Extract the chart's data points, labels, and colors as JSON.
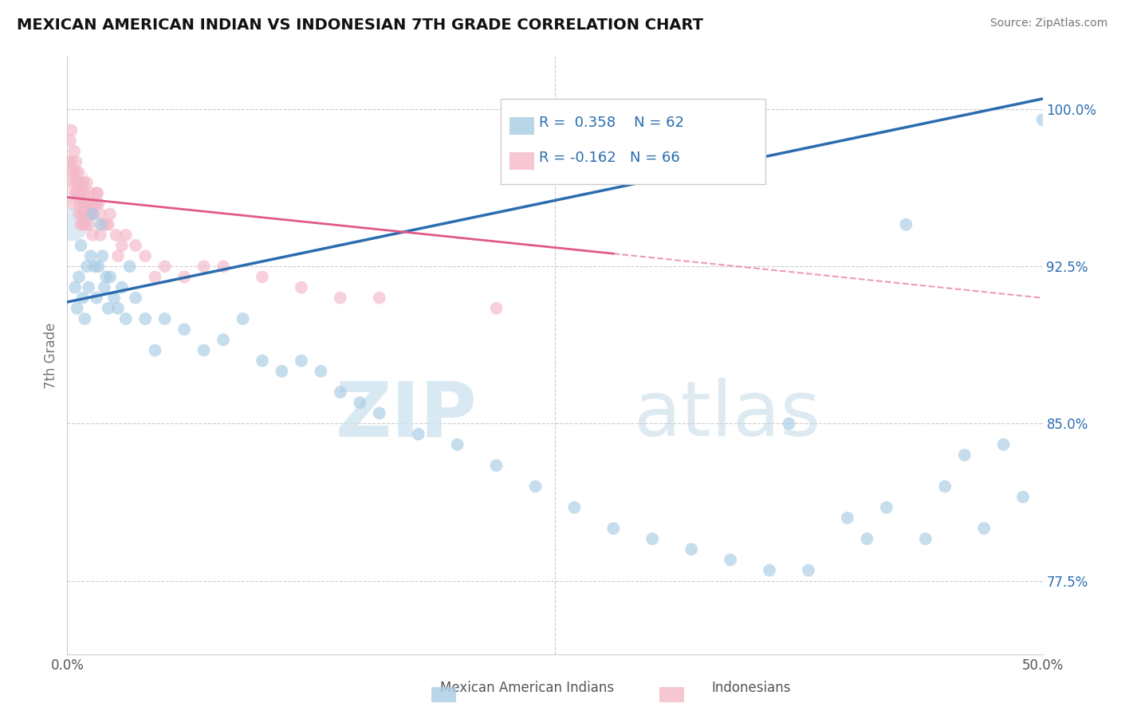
{
  "title": "MEXICAN AMERICAN INDIAN VS INDONESIAN 7TH GRADE CORRELATION CHART",
  "source": "Source: ZipAtlas.com",
  "ylabel": "7th Grade",
  "yticks": [
    77.5,
    85.0,
    92.5,
    100.0
  ],
  "xlim": [
    0.0,
    50.0
  ],
  "ylim": [
    74.0,
    102.5
  ],
  "legend_r_blue": "R =  0.358",
  "legend_n_blue": "N = 62",
  "legend_r_pink": "R = -0.162",
  "legend_n_pink": "N = 66",
  "legend_label_blue": "Mexican American Indians",
  "legend_label_pink": "Indonesians",
  "blue_color": "#a8cce4",
  "pink_color": "#f4b8c8",
  "blue_line_color": "#2b6cb0",
  "pink_line_color": "#e05a8a",
  "blue_tick_color": "#2b6cb0",
  "watermark_zip": "ZIP",
  "watermark_atlas": "atlas",
  "blue_scatter_x": [
    0.4,
    0.5,
    0.6,
    0.7,
    0.8,
    0.9,
    1.0,
    1.1,
    1.2,
    1.3,
    1.4,
    1.5,
    1.6,
    1.7,
    1.8,
    1.9,
    2.0,
    2.1,
    2.2,
    2.4,
    2.6,
    2.8,
    3.0,
    3.2,
    3.5,
    4.0,
    4.5,
    5.0,
    6.0,
    7.0,
    8.0,
    9.0,
    10.0,
    11.0,
    12.0,
    13.0,
    14.0,
    15.0,
    16.0,
    18.0,
    20.0,
    22.0,
    24.0,
    26.0,
    28.0,
    30.0,
    32.0,
    34.0,
    36.0,
    38.0,
    40.0,
    42.0,
    44.0,
    45.0,
    46.0,
    47.0,
    48.0,
    49.0,
    50.0,
    43.0,
    41.0,
    37.0
  ],
  "blue_scatter_y": [
    91.5,
    90.5,
    92.0,
    93.5,
    91.0,
    90.0,
    92.5,
    91.5,
    93.0,
    95.0,
    92.5,
    91.0,
    92.5,
    94.5,
    93.0,
    91.5,
    92.0,
    90.5,
    92.0,
    91.0,
    90.5,
    91.5,
    90.0,
    92.5,
    91.0,
    90.0,
    88.5,
    90.0,
    89.5,
    88.5,
    89.0,
    90.0,
    88.0,
    87.5,
    88.0,
    87.5,
    86.5,
    86.0,
    85.5,
    84.5,
    84.0,
    83.0,
    82.0,
    81.0,
    80.0,
    79.5,
    79.0,
    78.5,
    78.0,
    78.0,
    80.5,
    81.0,
    79.5,
    82.0,
    83.5,
    80.0,
    84.0,
    81.5,
    99.5,
    94.5,
    79.5,
    85.0
  ],
  "pink_scatter_x": [
    0.1,
    0.15,
    0.2,
    0.25,
    0.3,
    0.35,
    0.4,
    0.45,
    0.5,
    0.55,
    0.6,
    0.65,
    0.7,
    0.75,
    0.8,
    0.85,
    0.9,
    0.95,
    1.0,
    1.1,
    1.2,
    1.3,
    1.4,
    1.5,
    1.6,
    1.7,
    1.8,
    2.0,
    2.2,
    2.5,
    2.8,
    3.0,
    3.5,
    4.0,
    5.0,
    6.0,
    7.0,
    8.0,
    10.0,
    12.0,
    14.0,
    16.0,
    0.3,
    0.5,
    0.7,
    0.9,
    1.1,
    1.3,
    1.5,
    1.7,
    0.4,
    0.6,
    0.8,
    1.0,
    1.2,
    0.2,
    0.55,
    0.85,
    22.0,
    0.65,
    0.95,
    1.25,
    1.55,
    2.1,
    2.6,
    4.5
  ],
  "pink_scatter_y": [
    97.5,
    98.5,
    99.0,
    97.0,
    96.5,
    98.0,
    96.0,
    97.5,
    96.0,
    97.0,
    96.5,
    95.5,
    96.0,
    95.0,
    96.5,
    95.5,
    96.0,
    95.0,
    96.5,
    95.5,
    96.0,
    95.0,
    95.5,
    96.0,
    95.5,
    95.0,
    94.5,
    94.5,
    95.0,
    94.0,
    93.5,
    94.0,
    93.5,
    93.0,
    92.5,
    92.0,
    92.5,
    92.5,
    92.0,
    91.5,
    91.0,
    91.0,
    95.5,
    96.5,
    94.5,
    95.5,
    94.5,
    94.0,
    95.5,
    94.0,
    97.0,
    95.0,
    94.5,
    95.5,
    95.0,
    97.5,
    96.0,
    95.0,
    90.5,
    96.0,
    94.5,
    95.0,
    96.0,
    94.5,
    93.0,
    92.0
  ],
  "blue_line_x0": 0.0,
  "blue_line_y0": 90.8,
  "blue_line_x1": 50.0,
  "blue_line_y1": 100.5,
  "pink_line_x0": 0.0,
  "pink_line_y0": 95.8,
  "pink_line_x1": 50.0,
  "pink_line_y1": 91.0,
  "pink_solid_end": 28.0,
  "pink_dash_start": 28.0
}
